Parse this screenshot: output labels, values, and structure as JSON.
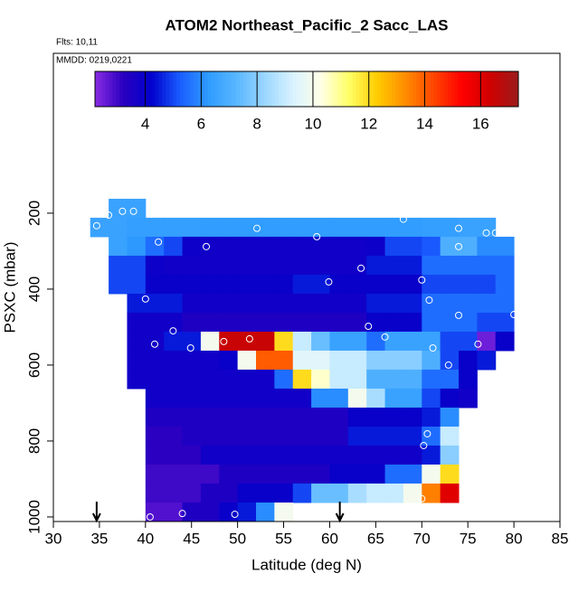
{
  "chart_data": {
    "type": "heatmap",
    "title": "ATOM2 Northeast_Pacific_2 Sacc_LAS",
    "annotations": [
      "Flts: 10,11",
      "MMDD: 0219,0221"
    ],
    "xlabel": "Latitude (deg N)",
    "ylabel": "PSXC (mbar)",
    "xlim": [
      30,
      85
    ],
    "xticks": [
      30,
      35,
      40,
      45,
      50,
      55,
      60,
      65,
      70,
      75,
      80,
      85
    ],
    "ylim": [
      1012,
      -221
    ],
    "yticks": [
      200,
      400,
      600,
      800,
      1000
    ],
    "clim": [
      2.2,
      17.35
    ],
    "cticks": [
      4,
      6,
      8,
      10,
      12,
      14,
      16
    ],
    "colormap": [
      "#8a2be2",
      "#2a00c0",
      "#0000cc",
      "#1a5cff",
      "#2e9bff",
      "#58b6ff",
      "#9ad6ff",
      "#d8f2ff",
      "#ffffe8",
      "#ffff66",
      "#ffcc00",
      "#ff8c00",
      "#ff4500",
      "#ff0000",
      "#d00000",
      "#9b1c1c"
    ],
    "x_bins": [
      34,
      36,
      38,
      40,
      42,
      44,
      46,
      48,
      50,
      52,
      54,
      56,
      58,
      60,
      62,
      64,
      66,
      68,
      70,
      72,
      74,
      76,
      78,
      80
    ],
    "y_bins": [
      162,
      212,
      262,
      312,
      362,
      412,
      462,
      512,
      562,
      612,
      662,
      712,
      762,
      812,
      862,
      912,
      962,
      1012
    ],
    "values": [
      [
        null,
        6.5,
        6.5,
        null,
        null,
        null,
        null,
        null,
        null,
        null,
        null,
        null,
        null,
        null,
        null,
        null,
        null,
        null,
        null,
        null,
        null,
        null,
        null
      ],
      [
        6.5,
        6.5,
        6.4,
        6.4,
        6.4,
        6.4,
        6.3,
        6.3,
        6.3,
        6.3,
        6.3,
        6.3,
        6.3,
        6.3,
        6.3,
        6.3,
        6.3,
        6.3,
        6.4,
        6.4,
        6.5,
        6.5,
        null
      ],
      [
        null,
        6.5,
        6.2,
        5.5,
        5.0,
        3.9,
        3.8,
        3.8,
        3.8,
        3.8,
        3.8,
        3.8,
        3.8,
        3.8,
        3.8,
        3.9,
        5.0,
        5.0,
        5.2,
        7.0,
        7.0,
        6.0,
        6.0
      ],
      [
        null,
        5.0,
        5.0,
        3.9,
        3.8,
        3.8,
        3.8,
        3.8,
        3.8,
        3.8,
        3.8,
        3.8,
        3.8,
        3.8,
        3.8,
        4.5,
        4.5,
        4.5,
        5.5,
        5.5,
        5.5,
        5.5,
        5.5
      ],
      [
        null,
        5.0,
        5.0,
        4.0,
        4.0,
        4.0,
        4.0,
        4.0,
        4.0,
        4.0,
        4.0,
        4.5,
        4.5,
        4.0,
        4.0,
        4.0,
        4.0,
        4.0,
        5.0,
        5.0,
        5.0,
        5.0,
        5.5
      ],
      [
        null,
        null,
        4.5,
        4.5,
        4.5,
        3.8,
        3.8,
        3.8,
        3.8,
        3.8,
        3.8,
        3.8,
        3.8,
        3.8,
        3.8,
        4.5,
        4.5,
        4.5,
        5.5,
        5.5,
        5.5,
        5.5,
        5.5
      ],
      [
        null,
        null,
        3.8,
        3.8,
        3.8,
        3.5,
        3.5,
        3.5,
        3.5,
        3.5,
        3.5,
        3.5,
        3.5,
        3.5,
        3.5,
        4.0,
        4.0,
        4.0,
        5.5,
        5.5,
        5.5,
        5.0,
        5.0
      ],
      [
        null,
        null,
        3.8,
        3.8,
        4.5,
        4.5,
        10,
        16.5,
        16.5,
        16.5,
        12,
        9,
        7.5,
        6.5,
        6.5,
        5.5,
        6.5,
        6.5,
        6.5,
        5.0,
        5.0,
        2.5,
        4.0
      ],
      [
        null,
        null,
        3.8,
        3.8,
        3.8,
        3.8,
        3.8,
        4.0,
        10,
        14,
        14,
        9.5,
        9.5,
        9,
        9,
        8,
        8,
        8,
        7,
        5,
        4,
        4.5,
        null
      ],
      [
        null,
        null,
        3.8,
        3.8,
        3.8,
        3.8,
        3.8,
        3.8,
        3.8,
        3.8,
        5.5,
        12,
        10.5,
        9,
        9,
        7,
        7,
        7,
        5.5,
        5.5,
        4.0,
        null,
        null
      ],
      [
        null,
        null,
        null,
        3.8,
        3.8,
        3.8,
        3.8,
        3.8,
        3.8,
        3.8,
        3.8,
        3.8,
        6.0,
        6.0,
        10,
        8.5,
        6.5,
        6.5,
        5.0,
        4.0,
        3.8,
        null,
        null
      ],
      [
        null,
        null,
        null,
        3.5,
        3.5,
        3.5,
        3.5,
        3.5,
        3.5,
        3.5,
        3.5,
        3.5,
        3.5,
        3.5,
        4.0,
        4.0,
        4.0,
        4.0,
        4.5,
        6.0,
        null,
        null,
        null
      ],
      [
        null,
        null,
        null,
        3.2,
        3.2,
        3.5,
        3.5,
        3.5,
        3.5,
        3.5,
        3.5,
        3.5,
        3.5,
        3.5,
        4.5,
        4.5,
        4.5,
        4.5,
        5.5,
        9.0,
        null,
        null,
        null
      ],
      [
        null,
        null,
        null,
        3.2,
        3.2,
        3.2,
        3.8,
        3.8,
        3.8,
        3.8,
        3.8,
        3.8,
        3.8,
        3.8,
        3.8,
        3.8,
        3.8,
        3.8,
        4.5,
        8.0,
        null,
        null,
        null
      ],
      [
        null,
        null,
        null,
        3.0,
        3.0,
        3.0,
        3.0,
        3.5,
        3.5,
        3.5,
        3.5,
        3.5,
        3.5,
        4.0,
        4.0,
        4.0,
        5.5,
        5.5,
        10,
        12,
        null,
        null,
        null
      ],
      [
        null,
        null,
        null,
        3.0,
        3.0,
        3.0,
        3.5,
        3.5,
        4.0,
        4.0,
        4.0,
        5.0,
        7.5,
        7.5,
        8.5,
        9.0,
        9.0,
        10,
        13.5,
        16,
        null,
        null,
        null
      ],
      [
        null,
        null,
        null,
        2.8,
        2.8,
        3.5,
        3.5,
        4.0,
        4.5,
        6.0,
        10,
        null,
        null,
        null,
        null,
        null,
        null,
        null,
        null,
        null,
        null,
        null,
        null
      ]
    ],
    "points": {
      "x": [
        34.7,
        36,
        37.5,
        38.7,
        52.1,
        58.6,
        68,
        74,
        77,
        78,
        41.4,
        46.6,
        74,
        63.4,
        59.9,
        70,
        40,
        70.8,
        74,
        80,
        43,
        64.2,
        66,
        48.5,
        51.3,
        41,
        44.9,
        71.2,
        76.1,
        72.9,
        70.6,
        70.2,
        70,
        40.5,
        44,
        49.7
      ],
      "y": [
        233,
        205,
        195,
        195,
        240,
        262,
        216,
        240,
        252,
        252,
        276,
        288,
        288,
        345,
        381,
        376,
        426,
        429,
        469,
        467,
        510,
        498,
        526,
        538,
        531,
        545,
        555,
        555,
        545,
        600,
        781,
        812,
        952,
        1000,
        991,
        993
      ]
    },
    "arrows_x": [
      34.7,
      61.1
    ]
  }
}
